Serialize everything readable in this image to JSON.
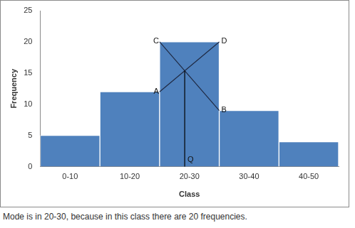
{
  "chart_data": {
    "type": "histogram",
    "bins": [
      0,
      10,
      20,
      30,
      40,
      50
    ],
    "categories": [
      "0-10",
      "10-20",
      "20-30",
      "30-40",
      "40-50"
    ],
    "values": [
      5,
      12,
      20,
      9,
      4
    ],
    "color": "#4f81bd",
    "x_label": "Class",
    "y_label": "Frequency",
    "ylim": [
      0,
      25
    ],
    "yticks": [
      0,
      5,
      10,
      15,
      20,
      25
    ],
    "grid": false,
    "construction": {
      "corners": [
        {
          "label": "C",
          "x": 20,
          "y": 20
        },
        {
          "label": "D",
          "x": 30,
          "y": 20
        },
        {
          "label": "A",
          "x": 20,
          "y": 12
        },
        {
          "label": "B",
          "x": 30,
          "y": 9
        }
      ],
      "foot": "Q"
    },
    "caption": "Mode is in 20-30, because in this class there are 20 frequencies."
  }
}
